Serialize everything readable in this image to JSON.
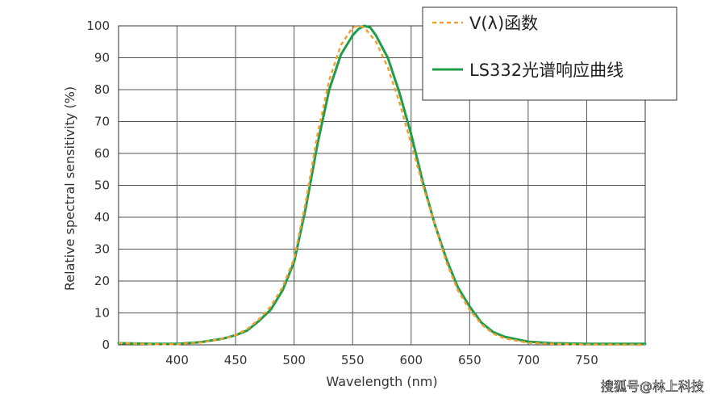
{
  "chart_data": {
    "type": "line",
    "title": "",
    "xlabel": "Wavelength (nm)",
    "ylabel": "Relative spectral sensitivity (%)",
    "xlim": [
      350,
      800
    ],
    "ylim": [
      0,
      100
    ],
    "x_ticks": [
      400,
      450,
      500,
      550,
      600,
      650,
      700,
      750
    ],
    "y_ticks": [
      0,
      10,
      20,
      30,
      40,
      50,
      60,
      70,
      80,
      90,
      100
    ],
    "grid": true,
    "legend_position": "top-right",
    "series": [
      {
        "name": "V(λ)函数",
        "color": "#f0a030",
        "style": "dashed",
        "x": [
          350,
          380,
          400,
          420,
          440,
          450,
          460,
          470,
          480,
          490,
          500,
          510,
          520,
          530,
          540,
          550,
          555,
          560,
          570,
          580,
          590,
          600,
          610,
          620,
          630,
          640,
          650,
          660,
          670,
          680,
          700,
          720,
          750,
          800
        ],
        "y": [
          0.5,
          0.2,
          0.2,
          0.7,
          2,
          3,
          5,
          8,
          12,
          18,
          27,
          45,
          66,
          83,
          94,
          99.5,
          100,
          99.5,
          95,
          87,
          76,
          63,
          50,
          38,
          26,
          17,
          11,
          6.5,
          3.5,
          2,
          0.6,
          0.3,
          0.1,
          0
        ]
      },
      {
        "name": "LS332光谱响应曲线",
        "color": "#1f9e49",
        "style": "solid",
        "x": [
          350,
          380,
          400,
          420,
          440,
          450,
          460,
          470,
          480,
          490,
          500,
          510,
          520,
          530,
          540,
          550,
          555,
          560,
          565,
          570,
          580,
          590,
          600,
          610,
          620,
          630,
          640,
          650,
          660,
          670,
          680,
          700,
          720,
          750,
          800
        ],
        "y": [
          0.5,
          0.3,
          0.3,
          0.8,
          2,
          3,
          4.5,
          7.5,
          11,
          17,
          26,
          43,
          63,
          80,
          91,
          97,
          99,
          100,
          99.5,
          97,
          90,
          79,
          66,
          51,
          38,
          27,
          18,
          12,
          7,
          4,
          2.5,
          1,
          0.5,
          0.3,
          0.3
        ]
      }
    ]
  },
  "watermark": "搜狐号@林上科技"
}
